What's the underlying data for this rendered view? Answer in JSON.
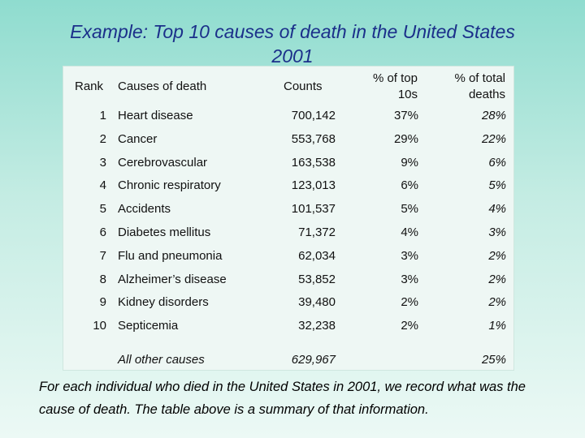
{
  "title": "Example: Top 10 causes of death in the United States 2001",
  "headers": {
    "rank": "Rank",
    "cause": "Causes of death",
    "counts": "Counts",
    "pct_top10_line1": "% of top",
    "pct_top10_line2": "10s",
    "pct_total_line1": "% of total",
    "pct_total_line2": "deaths"
  },
  "rows": [
    {
      "rank": "1",
      "cause": "Heart disease",
      "count": "700,142",
      "pct_top10": "37%",
      "pct_total": "28%"
    },
    {
      "rank": "2",
      "cause": "Cancer",
      "count": "553,768",
      "pct_top10": "29%",
      "pct_total": "22%"
    },
    {
      "rank": "3",
      "cause": "Cerebrovascular",
      "count": "163,538",
      "pct_top10": "9%",
      "pct_total": "6%"
    },
    {
      "rank": "4",
      "cause": "Chronic respiratory",
      "count": "123,013",
      "pct_top10": "6%",
      "pct_total": "5%"
    },
    {
      "rank": "5",
      "cause": "Accidents",
      "count": "101,537",
      "pct_top10": "5%",
      "pct_total": "4%"
    },
    {
      "rank": "6",
      "cause": "Diabetes mellitus",
      "count": "71,372",
      "pct_top10": "4%",
      "pct_total": "3%"
    },
    {
      "rank": "7",
      "cause": "Flu and pneumonia",
      "count": "62,034",
      "pct_top10": "3%",
      "pct_total": "2%"
    },
    {
      "rank": "8",
      "cause": "Alzheimer’s disease",
      "count": "53,852",
      "pct_top10": "3%",
      "pct_total": "2%"
    },
    {
      "rank": "9",
      "cause": "Kidney disorders",
      "count": "39,480",
      "pct_top10": "2%",
      "pct_total": "2%"
    },
    {
      "rank": "10",
      "cause": "Septicemia",
      "count": "32,238",
      "pct_top10": "2%",
      "pct_total": "1%"
    }
  ],
  "other": {
    "cause": "All other causes",
    "count": "629,967",
    "pct_total": "25%"
  },
  "caption": "For each individual who died in the United States in 2001, we record what was the cause of death. The table above is a summary of that information.",
  "colors": {
    "title": "#1b2f8a",
    "panel": "#eef7f4"
  }
}
